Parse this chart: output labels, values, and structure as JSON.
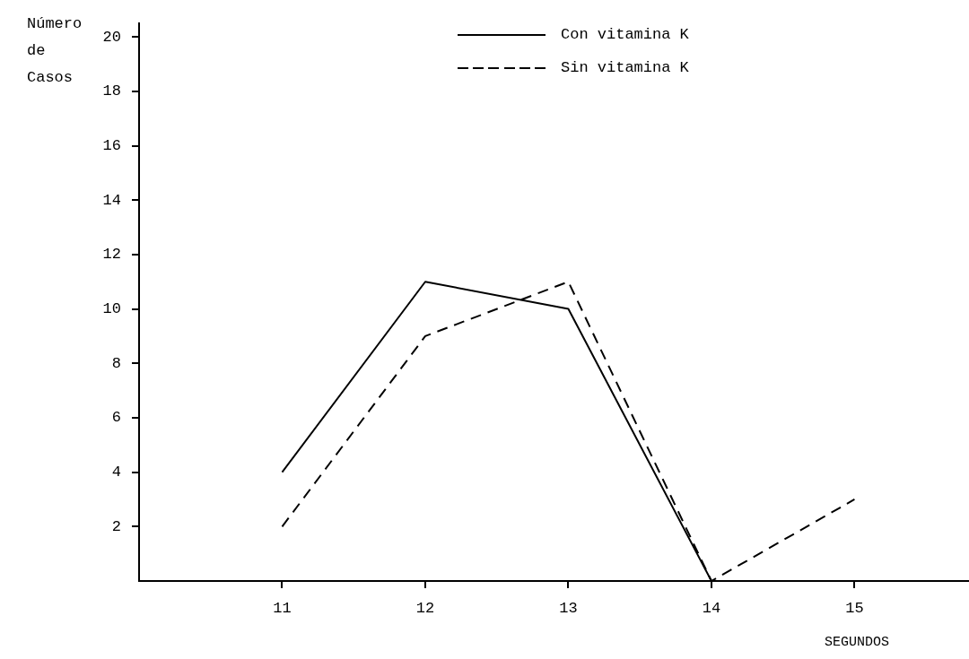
{
  "chart_data": {
    "type": "line",
    "xlabel": "SEGUNDOS",
    "ylabel": "Número de Casos",
    "x": [
      11,
      12,
      13,
      14,
      15
    ],
    "series": [
      {
        "name": "Con vitamina K",
        "color": "#000000",
        "line_style": "solid",
        "values": [
          4,
          11,
          10,
          0,
          0
        ]
      },
      {
        "name": "Sin vitamina K",
        "color": "#000000",
        "line_style": "dashed",
        "values": [
          2,
          9,
          11,
          0,
          3
        ]
      }
    ],
    "xlim": [
      10,
      15.8
    ],
    "xticks": [
      11,
      12,
      13,
      14,
      15
    ],
    "ylim": [
      0,
      20.5
    ],
    "yticks": [
      2,
      4,
      6,
      8,
      10,
      12,
      14,
      16,
      18,
      20
    ],
    "grid": false,
    "legend": "top",
    "marker": "none"
  }
}
